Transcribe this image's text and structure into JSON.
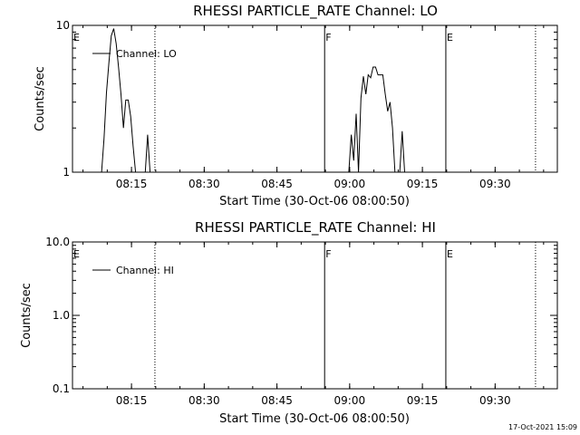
{
  "footer": {
    "timestamp": "17-Oct-2021 15:09"
  },
  "chart_data": [
    {
      "type": "line",
      "title": "RHESSI PARTICLE_RATE Channel: LO",
      "xlabel": "Start Time (30-Oct-06 08:00:50)",
      "ylabel": "Counts/sec",
      "y_scale": "log",
      "ylim": [
        1,
        10
      ],
      "xlim": [
        "08:02:50",
        "09:42:50"
      ],
      "x_ticks": [
        "08:15",
        "08:30",
        "08:45",
        "09:00",
        "09:15",
        "09:30"
      ],
      "y_ticks": [
        "1",
        "10"
      ],
      "legend": {
        "placement": "top-left",
        "label": "Channel: LO"
      },
      "markers": [
        {
          "time": "08:02:50",
          "label": "E",
          "style": "none"
        },
        {
          "time": "08:19:50",
          "label": "",
          "style": "dotted"
        },
        {
          "time": "08:54:50",
          "label": "F",
          "style": "solid"
        },
        {
          "time": "09:19:50",
          "label": "E",
          "style": "solid"
        },
        {
          "time": "09:38:20",
          "label": "",
          "style": "dotted"
        }
      ],
      "series": [
        {
          "name": "Channel: LO",
          "points": [
            [
              "08:08:50",
              1
            ],
            [
              "08:09:20",
              1.7
            ],
            [
              "08:09:50",
              3.5
            ],
            [
              "08:10:20",
              5.5
            ],
            [
              "08:10:50",
              8.5
            ],
            [
              "08:11:20",
              9.5
            ],
            [
              "08:11:50",
              7.5
            ],
            [
              "08:12:20",
              5.2
            ],
            [
              "08:12:50",
              3.4
            ],
            [
              "08:13:20",
              2
            ],
            [
              "08:13:50",
              3.1
            ],
            [
              "08:14:20",
              3.1
            ],
            [
              "08:14:50",
              2.4
            ],
            [
              "08:15:20",
              1.5
            ],
            [
              "08:15:50",
              1
            ],
            [
              "08:17:50",
              1
            ],
            [
              "08:18:20",
              1.8
            ],
            [
              "08:18:50",
              1
            ]
          ]
        },
        {
          "name": "Channel: LO",
          "points": [
            [
              "08:59:50",
              1
            ],
            [
              "09:00:20",
              1.8
            ],
            [
              "09:00:50",
              1.2
            ],
            [
              "09:01:20",
              2.5
            ],
            [
              "09:01:50",
              1
            ],
            [
              "09:02:20",
              3.2
            ],
            [
              "09:02:50",
              4.5
            ],
            [
              "09:03:20",
              3.4
            ],
            [
              "09:03:50",
              4.6
            ],
            [
              "09:04:20",
              4.4
            ],
            [
              "09:04:50",
              5.2
            ],
            [
              "09:05:20",
              5.2
            ],
            [
              "09:05:50",
              4.6
            ],
            [
              "09:06:20",
              4.6
            ],
            [
              "09:06:50",
              4.6
            ],
            [
              "09:07:20",
              3.4
            ],
            [
              "09:07:50",
              2.6
            ],
            [
              "09:08:20",
              3
            ],
            [
              "09:08:50",
              2
            ],
            [
              "09:09:20",
              1
            ],
            [
              "09:10:20",
              1
            ],
            [
              "09:10:50",
              1.9
            ],
            [
              "09:11:20",
              1
            ]
          ]
        }
      ]
    },
    {
      "type": "line",
      "title": "RHESSI PARTICLE_RATE Channel: HI",
      "xlabel": "Start Time (30-Oct-06 08:00:50)",
      "ylabel": "Counts/sec",
      "y_scale": "log",
      "ylim": [
        0.1,
        10
      ],
      "xlim": [
        "08:02:50",
        "09:42:50"
      ],
      "x_ticks": [
        "08:15",
        "08:30",
        "08:45",
        "09:00",
        "09:15",
        "09:30"
      ],
      "y_ticks": [
        "0.1",
        "1.0",
        "10.0"
      ],
      "legend": {
        "placement": "top-left",
        "label": "Channel: HI"
      },
      "markers": [
        {
          "time": "08:02:50",
          "label": "E",
          "style": "none"
        },
        {
          "time": "08:19:50",
          "label": "",
          "style": "dotted"
        },
        {
          "time": "08:54:50",
          "label": "F",
          "style": "solid"
        },
        {
          "time": "09:19:50",
          "label": "E",
          "style": "solid"
        },
        {
          "time": "09:38:20",
          "label": "",
          "style": "dotted"
        }
      ],
      "series": []
    }
  ]
}
